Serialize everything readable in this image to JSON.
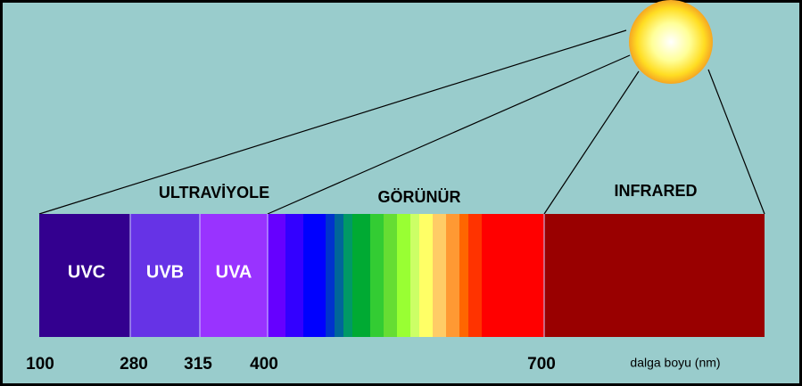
{
  "bands": {
    "uvc": "UVC",
    "uvb": "UVB",
    "uva": "UVA"
  },
  "regions": {
    "ultraviolet": "ULTRAVİYOLE",
    "visible": "GÖRÜNÜR",
    "infrared": "INFRARED"
  },
  "wavelengths": [
    "100",
    "280",
    "315",
    "400",
    "700"
  ],
  "axis_label": "dalga boyu (nm)"
}
